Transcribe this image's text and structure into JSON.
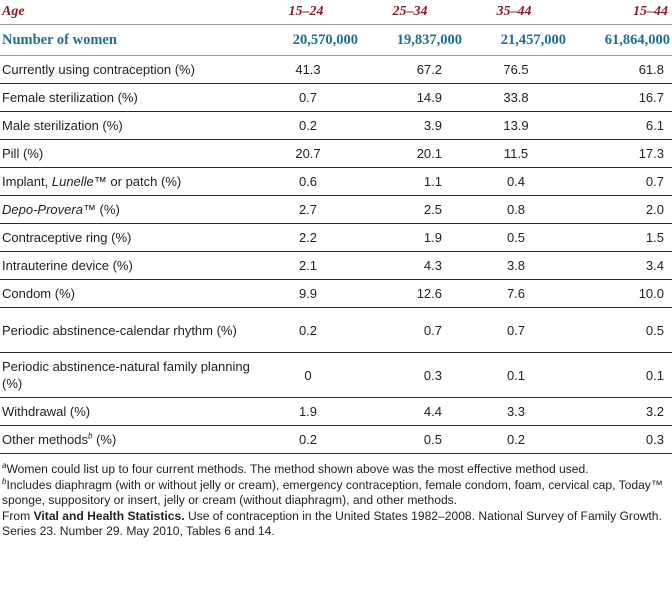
{
  "table": {
    "headers": [
      "Age",
      "15–24",
      "25–34",
      "35–44",
      "15–44"
    ],
    "number_row": {
      "label": "Number of women",
      "values": [
        "20,570,000",
        "19,837,000",
        "21,457,000",
        "61,864,000"
      ]
    },
    "rows": [
      {
        "label": "Currently using contraception (%)",
        "values": [
          "41.3",
          "67.2",
          "76.5",
          "61.8"
        ]
      },
      {
        "label": "Female sterilization (%)",
        "values": [
          "0.7",
          "14.9",
          "33.8",
          "16.7"
        ]
      },
      {
        "label": "Male sterilization (%)",
        "values": [
          "0.2",
          "3.9",
          "13.9",
          "6.1"
        ]
      },
      {
        "label": "Pill (%)",
        "values": [
          "20.7",
          "20.1",
          "11.5",
          "17.3"
        ]
      },
      {
        "label_parts": [
          "Implant, ",
          "Lunelle",
          "™ or patch (%)"
        ],
        "values": [
          "0.6",
          "1.1",
          "0.4",
          "0.7"
        ]
      },
      {
        "label_parts": [
          "Depo-Provera",
          "™ (%)"
        ],
        "values": [
          "2.7",
          "2.5",
          "0.8",
          "2.0"
        ]
      },
      {
        "label": "Contraceptive ring (%)",
        "values": [
          "2.2",
          "1.9",
          "0.5",
          "1.5"
        ]
      },
      {
        "label": "Intrauterine device (%)",
        "values": [
          "2.1",
          "4.3",
          "3.8",
          "3.4"
        ]
      },
      {
        "label": "Condom (%)",
        "values": [
          "9.9",
          "12.6",
          "7.6",
          "10.0"
        ]
      },
      {
        "label": "Periodic abstinence-calendar rhythm (%)",
        "values": [
          "0.2",
          "0.7",
          "0.7",
          "0.5"
        ]
      },
      {
        "label": "Periodic abstinence-natural family planning (%)",
        "values": [
          "0",
          "0.3",
          "0.1",
          "0.1"
        ]
      },
      {
        "label": "Withdrawal (%)",
        "values": [
          "1.9",
          "4.4",
          "3.3",
          "3.2"
        ]
      },
      {
        "label_parts": [
          "Other methods",
          "b",
          " (%)"
        ],
        "values": [
          "0.2",
          "0.5",
          "0.2",
          "0.3"
        ]
      }
    ]
  },
  "footnotes": {
    "a": {
      "mark": "a",
      "text": "Women could list up to four current methods. The method shown above was the most effective method used."
    },
    "b": {
      "mark": "b",
      "text": "Includes diaphragm (with or without jelly or cream), emergency contraception, female condom, foam, cervical cap, Today™ sponge, suppository or insert, jelly or cream (without diaphragm), and other methods."
    },
    "source": {
      "prefix": "From ",
      "bold": "Vital and Health Statistics.",
      "rest": " Use of contraception in the United States 1982–2008. National Survey of Family Growth. Series 23. Number 29. May 2010, Tables 6 and 14."
    }
  }
}
